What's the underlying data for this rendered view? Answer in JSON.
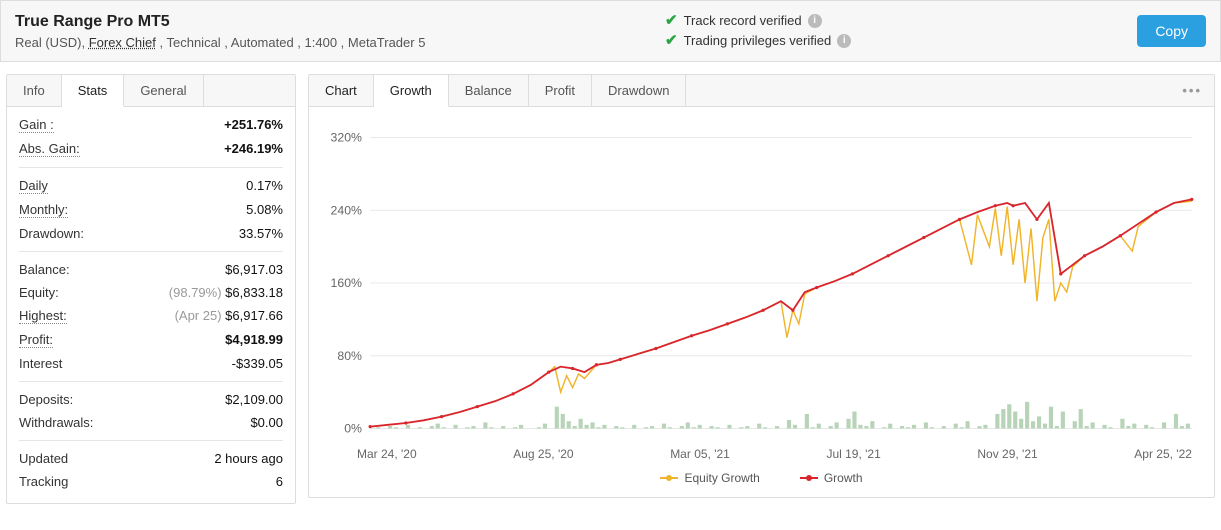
{
  "header": {
    "title": "True Range Pro MT5",
    "subtitle_prefix": "Real (USD), ",
    "broker_link": "Forex Chief",
    "subtitle_suffix": " , Technical , Automated , 1:400 , MetaTrader 5",
    "verify1": "Track record verified",
    "verify2": "Trading privileges verified",
    "copy_label": "Copy"
  },
  "left_tabs": {
    "info": "Info",
    "stats": "Stats",
    "general": "General"
  },
  "stats": {
    "gain_label": "Gain :",
    "gain_value": "+251.76%",
    "abs_gain_label": "Abs. Gain:",
    "abs_gain_value": "+246.19%",
    "daily_label": "Daily",
    "daily_value": "0.17%",
    "monthly_label": "Monthly:",
    "monthly_value": "5.08%",
    "drawdown_label": "Drawdown:",
    "drawdown_value": "33.57%",
    "balance_label": "Balance:",
    "balance_value": "$6,917.03",
    "equity_label": "Equity:",
    "equity_pct": "(98.79%)",
    "equity_value": "$6,833.18",
    "highest_label": "Highest:",
    "highest_date": "(Apr 25)",
    "highest_value": "$6,917.66",
    "profit_label": "Profit:",
    "profit_value": "$4,918.99",
    "interest_label": "Interest",
    "interest_value": "-$339.05",
    "deposits_label": "Deposits:",
    "deposits_value": "$2,109.00",
    "withdrawals_label": "Withdrawals:",
    "withdrawals_value": "$0.00",
    "updated_label": "Updated",
    "updated_value": "2 hours ago",
    "tracking_label": "Tracking",
    "tracking_value": "6"
  },
  "chart_tabs": {
    "chart": "Chart",
    "growth": "Growth",
    "balance": "Balance",
    "profit": "Profit",
    "drawdown": "Drawdown"
  },
  "legend": {
    "equity": "Equity Growth",
    "growth": "Growth"
  },
  "chart": {
    "type": "line",
    "ylim": [
      0,
      320
    ],
    "yticks": [
      0,
      80,
      160,
      240,
      320
    ],
    "ytick_labels": [
      "0%",
      "80%",
      "160%",
      "240%",
      "320%"
    ],
    "x_labels": [
      "Mar 24, '20",
      "Aug 25, '20",
      "Mar 05, '21",
      "Jul 19, '21",
      "Nov 29, '21",
      "Apr 25, '22"
    ],
    "grid_color": "#e8e8e8",
    "background_color": "#ffffff",
    "growth_color": "#d9262d",
    "equity_color": "#f0b429",
    "bars_color": "#b8d4b8",
    "label_fontsize": 12,
    "growth_points": [
      [
        0,
        2
      ],
      [
        3,
        4
      ],
      [
        6,
        6
      ],
      [
        9,
        9
      ],
      [
        12,
        13
      ],
      [
        15,
        18
      ],
      [
        18,
        24
      ],
      [
        21,
        30
      ],
      [
        24,
        38
      ],
      [
        27,
        48
      ],
      [
        30,
        62
      ],
      [
        32,
        68
      ],
      [
        34,
        66
      ],
      [
        36,
        62
      ],
      [
        38,
        70
      ],
      [
        40,
        72
      ],
      [
        42,
        76
      ],
      [
        45,
        82
      ],
      [
        48,
        88
      ],
      [
        51,
        95
      ],
      [
        54,
        102
      ],
      [
        57,
        108
      ],
      [
        60,
        115
      ],
      [
        63,
        122
      ],
      [
        66,
        130
      ],
      [
        69,
        140
      ],
      [
        71,
        130
      ],
      [
        73,
        150
      ],
      [
        75,
        155
      ],
      [
        78,
        162
      ],
      [
        81,
        170
      ],
      [
        84,
        180
      ],
      [
        87,
        190
      ],
      [
        90,
        200
      ],
      [
        93,
        210
      ],
      [
        96,
        220
      ],
      [
        99,
        230
      ],
      [
        102,
        238
      ],
      [
        105,
        245
      ],
      [
        107,
        248
      ],
      [
        108,
        245
      ],
      [
        110,
        248
      ],
      [
        112,
        230
      ],
      [
        114,
        248
      ],
      [
        116,
        170
      ],
      [
        118,
        180
      ],
      [
        120,
        190
      ],
      [
        123,
        200
      ],
      [
        126,
        212
      ],
      [
        129,
        225
      ],
      [
        132,
        238
      ],
      [
        135,
        248
      ],
      [
        138,
        252
      ]
    ],
    "equity_points": [
      [
        0,
        2
      ],
      [
        3,
        4
      ],
      [
        6,
        6
      ],
      [
        9,
        9
      ],
      [
        12,
        13
      ],
      [
        15,
        18
      ],
      [
        18,
        24
      ],
      [
        21,
        30
      ],
      [
        24,
        38
      ],
      [
        27,
        48
      ],
      [
        30,
        62
      ],
      [
        31,
        68
      ],
      [
        32,
        40
      ],
      [
        33,
        58
      ],
      [
        34,
        45
      ],
      [
        35,
        60
      ],
      [
        36,
        55
      ],
      [
        38,
        70
      ],
      [
        40,
        72
      ],
      [
        42,
        76
      ],
      [
        45,
        82
      ],
      [
        48,
        88
      ],
      [
        51,
        95
      ],
      [
        54,
        102
      ],
      [
        57,
        108
      ],
      [
        60,
        115
      ],
      [
        63,
        122
      ],
      [
        66,
        130
      ],
      [
        69,
        140
      ],
      [
        70,
        100
      ],
      [
        71,
        130
      ],
      [
        72,
        115
      ],
      [
        73,
        148
      ],
      [
        75,
        155
      ],
      [
        78,
        162
      ],
      [
        81,
        170
      ],
      [
        84,
        180
      ],
      [
        87,
        190
      ],
      [
        90,
        200
      ],
      [
        93,
        210
      ],
      [
        96,
        220
      ],
      [
        99,
        230
      ],
      [
        101,
        180
      ],
      [
        102,
        235
      ],
      [
        104,
        200
      ],
      [
        105,
        242
      ],
      [
        106,
        190
      ],
      [
        107,
        244
      ],
      [
        108,
        180
      ],
      [
        109,
        230
      ],
      [
        110,
        160
      ],
      [
        111,
        220
      ],
      [
        112,
        140
      ],
      [
        113,
        210
      ],
      [
        114,
        230
      ],
      [
        115,
        140
      ],
      [
        116,
        160
      ],
      [
        117,
        150
      ],
      [
        118,
        178
      ],
      [
        120,
        190
      ],
      [
        123,
        200
      ],
      [
        126,
        212
      ],
      [
        128,
        195
      ],
      [
        129,
        222
      ],
      [
        132,
        238
      ],
      [
        135,
        248
      ],
      [
        138,
        250
      ]
    ],
    "volume_bars": [
      0,
      1,
      0,
      2,
      1,
      0,
      3,
      0,
      1,
      0,
      2,
      4,
      1,
      0,
      3,
      0,
      1,
      2,
      0,
      5,
      1,
      0,
      2,
      0,
      1,
      3,
      0,
      0,
      1,
      4,
      0,
      18,
      12,
      6,
      2,
      8,
      3,
      5,
      1,
      3,
      0,
      2,
      1,
      0,
      3,
      0,
      1,
      2,
      0,
      4,
      1,
      0,
      2,
      5,
      1,
      3,
      0,
      2,
      1,
      0,
      3,
      0,
      1,
      2,
      0,
      4,
      1,
      0,
      2,
      0,
      7,
      3,
      0,
      12,
      1,
      4,
      0,
      2,
      5,
      0,
      8,
      14,
      3,
      2,
      6,
      0,
      1,
      4,
      0,
      2,
      1,
      3,
      0,
      5,
      1,
      0,
      2,
      0,
      4,
      1,
      6,
      0,
      2,
      3,
      0,
      12,
      16,
      20,
      14,
      8,
      22,
      6,
      10,
      4,
      18,
      2,
      14,
      0,
      6,
      16,
      2,
      5,
      0,
      3,
      1,
      0,
      8,
      2,
      4,
      0,
      3,
      1,
      0,
      5,
      0,
      12,
      2,
      4
    ]
  }
}
